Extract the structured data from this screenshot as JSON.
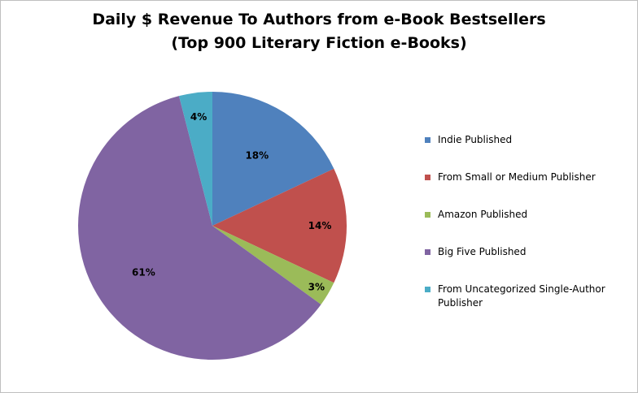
{
  "chart_data": {
    "type": "pie",
    "title_lines": [
      "Daily $ Revenue To Authors from e-Book Bestsellers",
      "(Top 900 Literary Fiction e-Books)"
    ],
    "slices": [
      {
        "name": "Indie Published",
        "value": 18,
        "label": "18%",
        "color": "#4f81bd"
      },
      {
        "name": "From Small or Medium Publisher",
        "value": 14,
        "label": "14%",
        "color": "#c0504d"
      },
      {
        "name": "Amazon Published",
        "value": 3,
        "label": "3%",
        "color": "#9bbb59"
      },
      {
        "name": "Big Five Published",
        "value": 61,
        "label": "61%",
        "color": "#8064a2"
      },
      {
        "name": "From Uncategorized Single-Author Publisher",
        "value": 4,
        "label": "4%",
        "color": "#4bacc6"
      }
    ],
    "legend_position": "right"
  }
}
